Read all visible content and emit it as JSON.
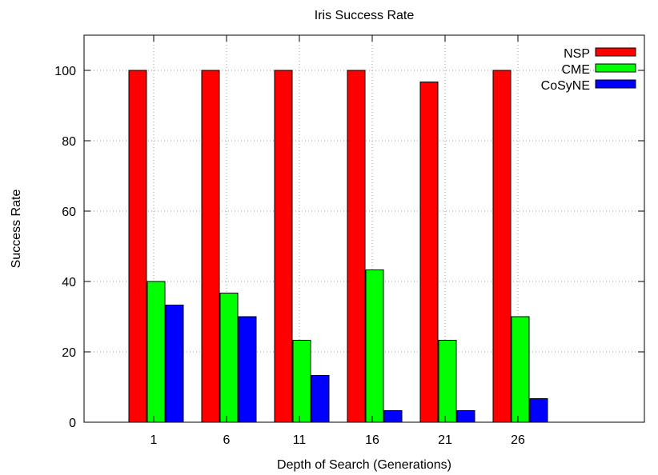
{
  "chart_data": {
    "type": "bar",
    "title": "Iris Success Rate",
    "xlabel": "Depth of Search (Generations)",
    "ylabel": "Success Rate",
    "categories": [
      "1",
      "6",
      "11",
      "16",
      "21",
      "26"
    ],
    "ylim": [
      0,
      110
    ],
    "yticks": [
      0,
      20,
      40,
      60,
      80,
      100
    ],
    "grid": true,
    "legend_position": "top-right",
    "series": [
      {
        "name": "NSP",
        "color": "#ff0000",
        "values": [
          100,
          100,
          100,
          100,
          96.7,
          100
        ]
      },
      {
        "name": "CME",
        "color": "#00ff00",
        "values": [
          40,
          36.7,
          23.3,
          43.3,
          23.3,
          30
        ]
      },
      {
        "name": "CoSyNE",
        "color": "#0000ff",
        "values": [
          33.3,
          30,
          13.3,
          3.3,
          3.3,
          6.7
        ]
      }
    ]
  }
}
